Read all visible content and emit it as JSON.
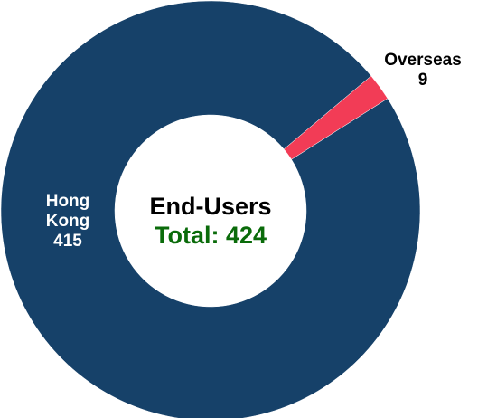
{
  "chart_data": {
    "type": "donut",
    "title": "End-Users",
    "subtitle": "Total: 424",
    "categories": [
      "Overseas",
      "Hong Kong"
    ],
    "values": [
      9,
      415
    ],
    "colors": [
      "#f23c56",
      "#164169"
    ]
  }
}
